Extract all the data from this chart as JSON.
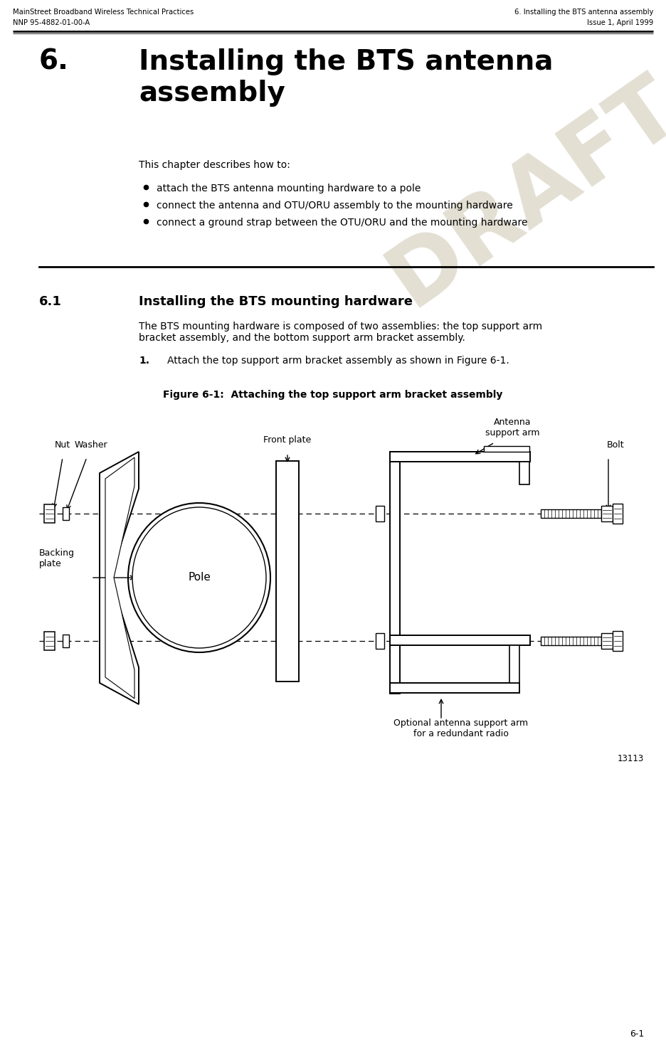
{
  "header_left_line1": "MainStreet Broadband Wireless Technical Practices",
  "header_left_line2": "NNP 95-4882-01-00-A",
  "header_right_line1": "6. Installing the BTS antenna assembly",
  "header_right_line2": "Issue 1, April 1999",
  "chapter_num": "6.",
  "chapter_title": "Installing the BTS antenna\nassembly",
  "intro_text": "This chapter describes how to:",
  "bullets": [
    "attach the BTS antenna mounting hardware to a pole",
    "connect the antenna and OTU/ORU assembly to the mounting hardware",
    "connect a ground strap between the OTU/ORU and the mounting hardware"
  ],
  "section_num": "6.1",
  "section_title": "Installing the BTS mounting hardware",
  "section_body1": "The BTS mounting hardware is composed of two assemblies: the top support arm",
  "section_body2": "bracket assembly, and the bottom support arm bracket assembly.",
  "step1_label": "1.",
  "step1_text": "Attach the top support arm bracket assembly as shown in Figure 6-1.",
  "figure_caption": "Figure 6-1:  Attaching the top support arm bracket assembly",
  "label_nut": "Nut",
  "label_washer": "Washer",
  "label_front_plate": "Front plate",
  "label_antenna_arm": "Antenna\nsupport arm",
  "label_bolt": "Bolt",
  "label_backing_plate": "Backing\nplate",
  "label_pole": "Pole",
  "label_optional": "Optional antenna support arm\nfor a redundant radio",
  "draft_watermark": "DRAFT",
  "figure_number": "13113",
  "page_number": "6-1",
  "bg_color": "#ffffff",
  "text_color": "#000000",
  "draft_color": "#c8c0a8"
}
